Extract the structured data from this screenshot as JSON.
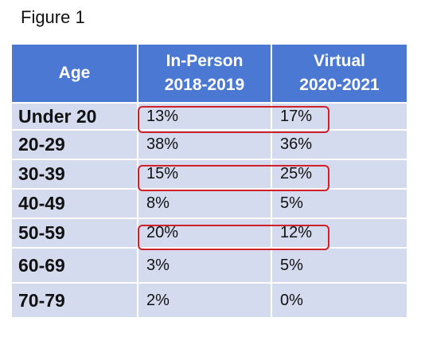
{
  "figure_title": "Figure 1",
  "table": {
    "headers": {
      "age": "Age",
      "in_person": [
        "In-Person",
        "2018-2019"
      ],
      "virtual": [
        "Virtual",
        "2020-2021"
      ]
    },
    "rows": [
      {
        "age": "Under 20",
        "in_person": "13%",
        "virtual": "17%",
        "highlighted": true
      },
      {
        "age": "20-29",
        "in_person": "38%",
        "virtual": "36%",
        "highlighted": false
      },
      {
        "age": "30-39",
        "in_person": "15%",
        "virtual": "25%",
        "highlighted": true
      },
      {
        "age": "40-49",
        "in_person": "8%",
        "virtual": "5%",
        "highlighted": false
      },
      {
        "age": "50-59",
        "in_person": "20%",
        "virtual": "12%",
        "highlighted": true
      },
      {
        "age": "60-69",
        "in_person": "3%",
        "virtual": "5%",
        "highlighted": false
      },
      {
        "age": "70-79",
        "in_person": "2%",
        "virtual": "0%",
        "highlighted": false
      }
    ]
  },
  "colors": {
    "header_bg": "#4a78d2",
    "row_bg": "#d4dbee",
    "highlight_border": "#d0202a"
  }
}
